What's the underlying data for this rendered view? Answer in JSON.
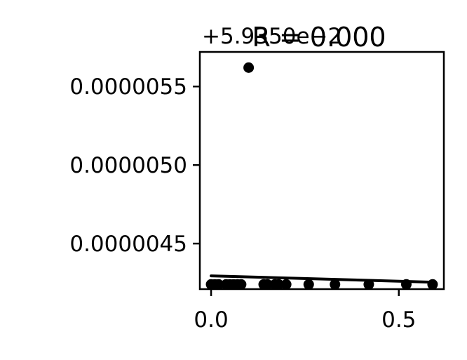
{
  "chart_data": {
    "type": "scatter",
    "title": "R = 0.000",
    "y_offset_text": "+5.9350e−2",
    "xlabel": "",
    "ylabel": "",
    "xlim": [
      -0.03,
      0.62
    ],
    "ylim": [
      4.21e-06,
      5.72e-06
    ],
    "x_ticks": [
      {
        "value": 0.0,
        "label": "0.0"
      },
      {
        "value": 0.5,
        "label": "0.5"
      }
    ],
    "y_ticks": [
      {
        "value": 4.5e-06,
        "label": "0.0000045"
      },
      {
        "value": 5e-06,
        "label": "0.0000050"
      },
      {
        "value": 5.5e-06,
        "label": "0.0000055"
      }
    ],
    "points": [
      {
        "x": 0.0,
        "y": 4.24e-06
      },
      {
        "x": 0.01,
        "y": 4.24e-06
      },
      {
        "x": 0.02,
        "y": 4.24e-06
      },
      {
        "x": 0.04,
        "y": 4.24e-06
      },
      {
        "x": 0.05,
        "y": 4.24e-06
      },
      {
        "x": 0.06,
        "y": 4.24e-06
      },
      {
        "x": 0.07,
        "y": 4.24e-06
      },
      {
        "x": 0.08,
        "y": 4.24e-06
      },
      {
        "x": 0.1,
        "y": 5.62e-06
      },
      {
        "x": 0.14,
        "y": 4.24e-06
      },
      {
        "x": 0.15,
        "y": 4.24e-06
      },
      {
        "x": 0.17,
        "y": 4.24e-06
      },
      {
        "x": 0.18,
        "y": 4.24e-06
      },
      {
        "x": 0.2,
        "y": 4.24e-06
      },
      {
        "x": 0.26,
        "y": 4.24e-06
      },
      {
        "x": 0.33,
        "y": 4.24e-06
      },
      {
        "x": 0.42,
        "y": 4.24e-06
      },
      {
        "x": 0.52,
        "y": 4.24e-06
      },
      {
        "x": 0.59,
        "y": 4.24e-06
      }
    ],
    "fit_line": {
      "x": [
        0.0,
        0.59
      ],
      "y": [
        4.2945e-06,
        4.2543e-06
      ]
    },
    "grid": false,
    "marker_color": "#000000",
    "line_color": "#000000"
  }
}
